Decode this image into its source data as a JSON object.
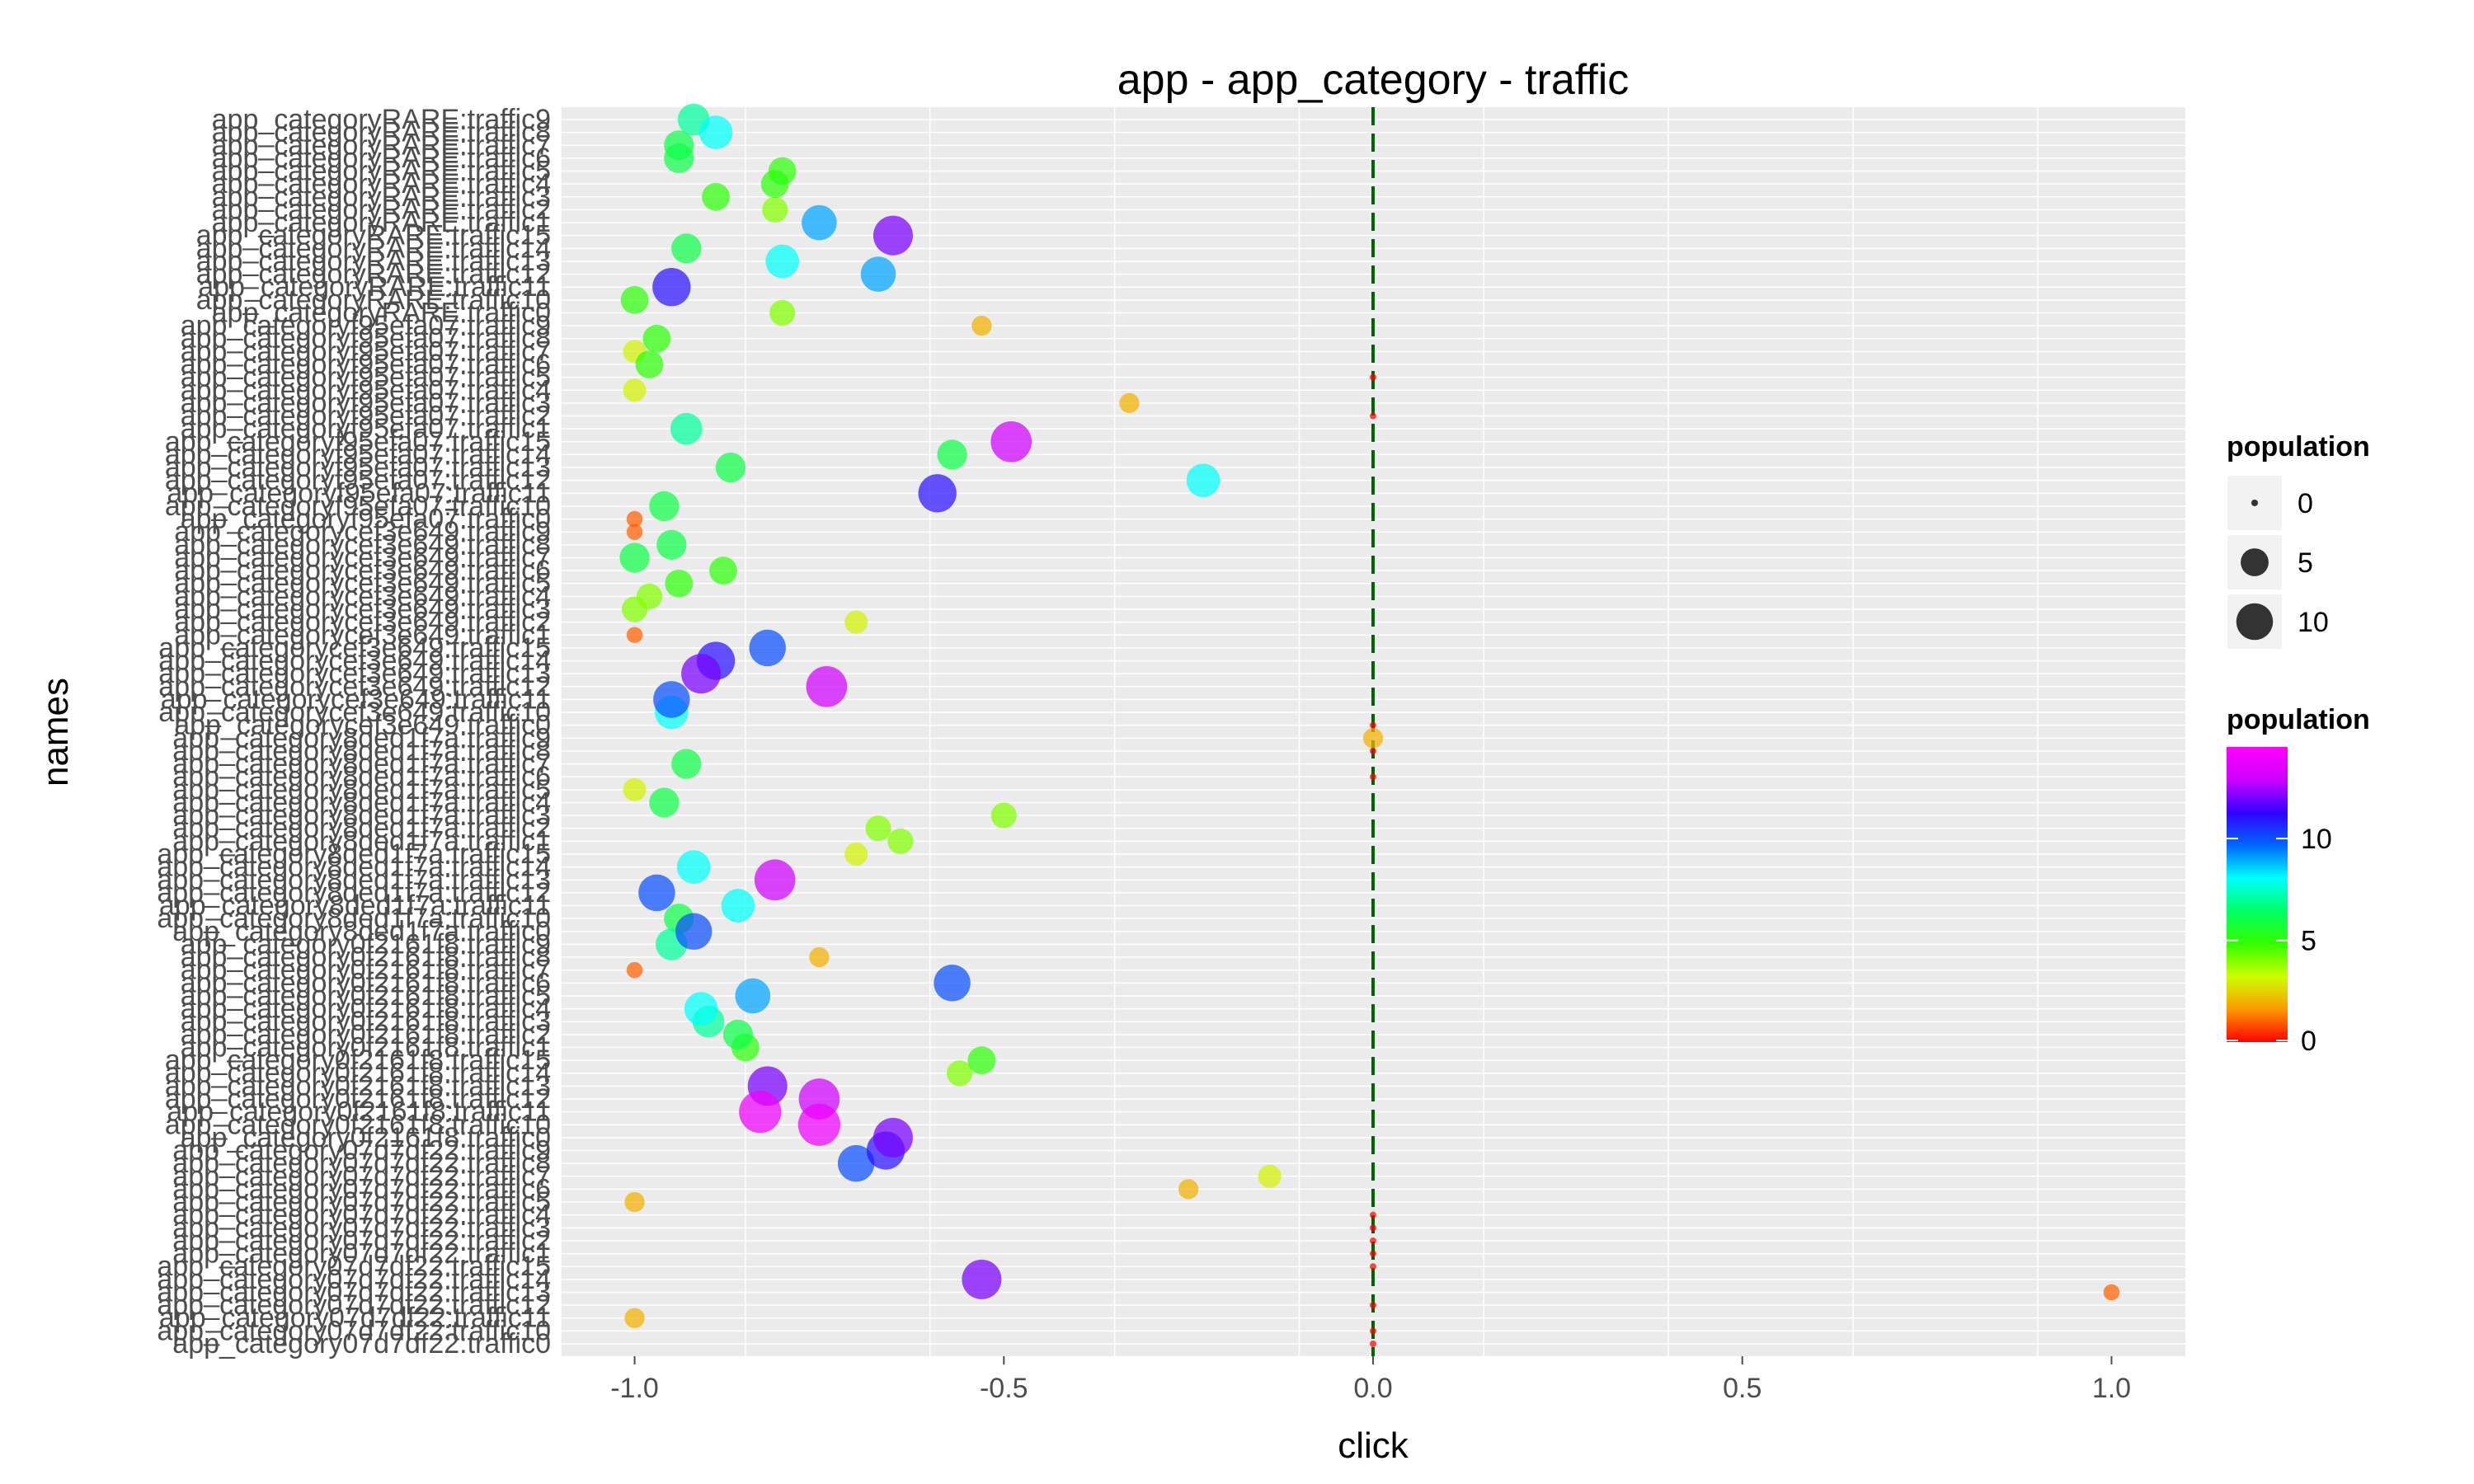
{
  "chart_data": {
    "type": "scatter",
    "title": "app - app_category - traffic",
    "xlabel": "click",
    "ylabel": "names",
    "xlim": [
      -1.1,
      1.1
    ],
    "x_ticks": [
      -1.0,
      -0.5,
      0.0,
      0.5,
      1.0
    ],
    "x_tick_labels": [
      "-1.0",
      "-0.5",
      "0.0",
      "0.5",
      "1.0"
    ],
    "grid": true,
    "legend_placement": "right",
    "reference_line": {
      "x": 0.0,
      "style": "dashed",
      "color": "#006400"
    },
    "legend_size": {
      "title": "population",
      "values": [
        0,
        5,
        10
      ],
      "labels": [
        "0",
        "5",
        "10"
      ]
    },
    "legend_color": {
      "title": "population",
      "range": [
        0,
        14.5
      ],
      "ticks": [
        0,
        5,
        10
      ],
      "tick_labels": [
        "0",
        "5",
        "10"
      ],
      "colors": [
        "#ff0000",
        "#ff9900",
        "#ccff00",
        "#33ff00",
        "#00ff66",
        "#00ffff",
        "#0066ff",
        "#3300ff",
        "#cc00ff",
        "#ff00ff"
      ]
    },
    "categories": [
      "app_categoryRARE:traffic9",
      "app_categoryRARE:traffic8",
      "app_categoryRARE:traffic7",
      "app_categoryRARE:traffic6",
      "app_categoryRARE:traffic5",
      "app_categoryRARE:traffic4",
      "app_categoryRARE:traffic3",
      "app_categoryRARE:traffic2",
      "app_categoryRARE:traffic1",
      "app_categoryRARE:traffic15",
      "app_categoryRARE:traffic14",
      "app_categoryRARE:traffic13",
      "app_categoryRARE:traffic12",
      "app_categoryRARE:traffic11",
      "app_categoryRARE:traffic10",
      "app_categoryRARE:traffic0",
      "app_categoryf95efa07:traffic9",
      "app_categoryf95efa07:traffic8",
      "app_categoryf95efa07:traffic7",
      "app_categoryf95efa07:traffic6",
      "app_categoryf95efa07:traffic5",
      "app_categoryf95efa07:traffic4",
      "app_categoryf95efa07:traffic3",
      "app_categoryf95efa07:traffic2",
      "app_categoryf95efa07:traffic1",
      "app_categoryf95efa07:traffic15",
      "app_categoryf95efa07:traffic14",
      "app_categoryf95efa07:traffic13",
      "app_categoryf95efa07:traffic12",
      "app_categoryf95efa07:traffic11",
      "app_categoryf95efa07:traffic10",
      "app_categoryf95efa07:traffic0",
      "app_categorycef3e649:traffic9",
      "app_categorycef3e649:traffic8",
      "app_categorycef3e649:traffic7",
      "app_categorycef3e649:traffic6",
      "app_categorycef3e649:traffic5",
      "app_categorycef3e649:traffic4",
      "app_categorycef3e649:traffic3",
      "app_categorycef3e649:traffic2",
      "app_categorycef3e649:traffic1",
      "app_categorycef3e649:traffic15",
      "app_categorycef3e649:traffic14",
      "app_categorycef3e649:traffic13",
      "app_categorycef3e649:traffic12",
      "app_categorycef3e649:traffic11",
      "app_categorycef3e649:traffic10",
      "app_categorycef3e649:traffic0",
      "app_category8ded1f7a:traffic9",
      "app_category8ded1f7a:traffic8",
      "app_category8ded1f7a:traffic7",
      "app_category8ded1f7a:traffic6",
      "app_category8ded1f7a:traffic5",
      "app_category8ded1f7a:traffic4",
      "app_category8ded1f7a:traffic3",
      "app_category8ded1f7a:traffic2",
      "app_category8ded1f7a:traffic1",
      "app_category8ded1f7a:traffic15",
      "app_category8ded1f7a:traffic14",
      "app_category8ded1f7a:traffic13",
      "app_category8ded1f7a:traffic12",
      "app_category8ded1f7a:traffic11",
      "app_category8ded1f7a:traffic10",
      "app_category8ded1f7a:traffic0",
      "app_category0f2161f8:traffic9",
      "app_category0f2161f8:traffic8",
      "app_category0f2161f8:traffic7",
      "app_category0f2161f8:traffic6",
      "app_category0f2161f8:traffic5",
      "app_category0f2161f8:traffic4",
      "app_category0f2161f8:traffic3",
      "app_category0f2161f8:traffic2",
      "app_category0f2161f8:traffic1",
      "app_category0f2161f8:traffic15",
      "app_category0f2161f8:traffic14",
      "app_category0f2161f8:traffic13",
      "app_category0f2161f8:traffic12",
      "app_category0f2161f8:traffic11",
      "app_category0f2161f8:traffic10",
      "app_category0f2161f8:traffic0",
      "app_category07d7df22:traffic9",
      "app_category07d7df22:traffic8",
      "app_category07d7df22:traffic7",
      "app_category07d7df22:traffic6",
      "app_category07d7df22:traffic5",
      "app_category07d7df22:traffic4",
      "app_category07d7df22:traffic3",
      "app_category07d7df22:traffic2",
      "app_category07d7df22:traffic1",
      "app_category07d7df22:traffic15",
      "app_category07d7df22:traffic14",
      "app_category07d7df22:traffic13",
      "app_category07d7df22:traffic12",
      "app_category07d7df22:traffic11",
      "app_category07d7df22:traffic10",
      "app_category07d7df22:traffic0"
    ],
    "points": [
      {
        "name": "app_categoryRARE:traffic9",
        "x": -0.92,
        "population": 7
      },
      {
        "name": "app_categoryRARE:traffic8",
        "x": -0.89,
        "population": 8
      },
      {
        "name": "app_categoryRARE:traffic7",
        "x": -0.94,
        "population": 6
      },
      {
        "name": "app_categoryRARE:traffic6",
        "x": -0.94,
        "population": 6
      },
      {
        "name": "app_categoryRARE:traffic5",
        "x": -0.8,
        "population": 5
      },
      {
        "name": "app_categoryRARE:traffic4",
        "x": -0.81,
        "population": 5
      },
      {
        "name": "app_categoryRARE:traffic3",
        "x": -0.89,
        "population": 5
      },
      {
        "name": "app_categoryRARE:traffic2",
        "x": -0.81,
        "population": 4
      },
      {
        "name": "app_categoryRARE:traffic1",
        "x": -0.75,
        "population": 9
      },
      {
        "name": "app_categoryRARE:traffic15",
        "x": -0.65,
        "population": 12
      },
      {
        "name": "app_categoryRARE:traffic14",
        "x": -0.93,
        "population": 6
      },
      {
        "name": "app_categoryRARE:traffic13",
        "x": -0.8,
        "population": 8
      },
      {
        "name": "app_categoryRARE:traffic12",
        "x": -0.67,
        "population": 9
      },
      {
        "name": "app_categoryRARE:traffic11",
        "x": -0.95,
        "population": 11
      },
      {
        "name": "app_categoryRARE:traffic10",
        "x": -1.0,
        "population": 5
      },
      {
        "name": "app_categoryRARE:traffic0",
        "x": -0.8,
        "population": 4
      },
      {
        "name": "app_categoryf95efa07:traffic9",
        "x": -0.53,
        "population": 2
      },
      {
        "name": "app_categoryf95efa07:traffic8",
        "x": -0.97,
        "population": 5
      },
      {
        "name": "app_categoryf95efa07:traffic7",
        "x": -1.0,
        "population": 3
      },
      {
        "name": "app_categoryf95efa07:traffic6",
        "x": -0.98,
        "population": 5
      },
      {
        "name": "app_categoryf95efa07:traffic5",
        "x": 0.0,
        "population": 0
      },
      {
        "name": "app_categoryf95efa07:traffic4",
        "x": -1.0,
        "population": 3
      },
      {
        "name": "app_categoryf95efa07:traffic3",
        "x": -0.33,
        "population": 2
      },
      {
        "name": "app_categoryf95efa07:traffic2",
        "x": 0.0,
        "population": 0
      },
      {
        "name": "app_categoryf95efa07:traffic1",
        "x": -0.93,
        "population": 7
      },
      {
        "name": "app_categoryf95efa07:traffic15",
        "x": -0.49,
        "population": 13
      },
      {
        "name": "app_categoryf95efa07:traffic14",
        "x": -0.57,
        "population": 6
      },
      {
        "name": "app_categoryf95efa07:traffic13",
        "x": -0.87,
        "population": 6
      },
      {
        "name": "app_categoryf95efa07:traffic12",
        "x": -0.23,
        "population": 8
      },
      {
        "name": "app_categoryf95efa07:traffic11",
        "x": -0.59,
        "population": 11
      },
      {
        "name": "app_categoryf95efa07:traffic10",
        "x": -0.96,
        "population": 6
      },
      {
        "name": "app_categoryf95efa07:traffic0",
        "x": -1.0,
        "population": 1
      },
      {
        "name": "app_categorycef3e649:traffic9",
        "x": -1.0,
        "population": 1
      },
      {
        "name": "app_categorycef3e649:traffic8",
        "x": -0.95,
        "population": 6
      },
      {
        "name": "app_categorycef3e649:traffic7",
        "x": -1.0,
        "population": 6
      },
      {
        "name": "app_categorycef3e649:traffic6",
        "x": -0.88,
        "population": 5
      },
      {
        "name": "app_categorycef3e649:traffic5",
        "x": -0.94,
        "population": 5
      },
      {
        "name": "app_categorycef3e649:traffic4",
        "x": -0.98,
        "population": 4
      },
      {
        "name": "app_categorycef3e649:traffic3",
        "x": -1.0,
        "population": 4
      },
      {
        "name": "app_categorycef3e649:traffic2",
        "x": -0.7,
        "population": 3
      },
      {
        "name": "app_categorycef3e649:traffic1",
        "x": -1.0,
        "population": 1
      },
      {
        "name": "app_categorycef3e649:traffic15",
        "x": -0.82,
        "population": 10
      },
      {
        "name": "app_categorycef3e649:traffic14",
        "x": -0.89,
        "population": 11
      },
      {
        "name": "app_categorycef3e649:traffic13",
        "x": -0.91,
        "population": 12
      },
      {
        "name": "app_categorycef3e649:traffic12",
        "x": -0.74,
        "population": 13
      },
      {
        "name": "app_categorycef3e649:traffic11",
        "x": -0.95,
        "population": 10
      },
      {
        "name": "app_categorycef3e649:traffic10",
        "x": -0.95,
        "population": 8
      },
      {
        "name": "app_categorycef3e649:traffic0",
        "x": 0.0,
        "population": 0
      },
      {
        "name": "app_category8ded1f7a:traffic9",
        "x": 0.0,
        "population": 2
      },
      {
        "name": "app_category8ded1f7a:traffic8",
        "x": 0.0,
        "population": 0
      },
      {
        "name": "app_category8ded1f7a:traffic7",
        "x": -0.93,
        "population": 6
      },
      {
        "name": "app_category8ded1f7a:traffic6",
        "x": 0.0,
        "population": 0
      },
      {
        "name": "app_category8ded1f7a:traffic5",
        "x": -1.0,
        "population": 3
      },
      {
        "name": "app_category8ded1f7a:traffic4",
        "x": -0.96,
        "population": 6
      },
      {
        "name": "app_category8ded1f7a:traffic3",
        "x": -0.5,
        "population": 4
      },
      {
        "name": "app_category8ded1f7a:traffic2",
        "x": -0.67,
        "population": 4
      },
      {
        "name": "app_category8ded1f7a:traffic1",
        "x": -0.64,
        "population": 4
      },
      {
        "name": "app_category8ded1f7a:traffic15",
        "x": -0.7,
        "population": 3
      },
      {
        "name": "app_category8ded1f7a:traffic14",
        "x": -0.92,
        "population": 8
      },
      {
        "name": "app_category8ded1f7a:traffic13",
        "x": -0.81,
        "population": 13
      },
      {
        "name": "app_category8ded1f7a:traffic12",
        "x": -0.97,
        "population": 10
      },
      {
        "name": "app_category8ded1f7a:traffic11",
        "x": -0.86,
        "population": 8
      },
      {
        "name": "app_category8ded1f7a:traffic10",
        "x": -0.94,
        "population": 6
      },
      {
        "name": "app_category8ded1f7a:traffic0",
        "x": -0.92,
        "population": 10
      },
      {
        "name": "app_category0f2161f8:traffic9",
        "x": -0.95,
        "population": 7
      },
      {
        "name": "app_category0f2161f8:traffic8",
        "x": -0.75,
        "population": 2
      },
      {
        "name": "app_category0f2161f8:traffic7",
        "x": -1.0,
        "population": 1
      },
      {
        "name": "app_category0f2161f8:traffic6",
        "x": -0.57,
        "population": 10
      },
      {
        "name": "app_category0f2161f8:traffic5",
        "x": -0.84,
        "population": 9
      },
      {
        "name": "app_category0f2161f8:traffic4",
        "x": -0.91,
        "population": 8
      },
      {
        "name": "app_category0f2161f8:traffic3",
        "x": -0.9,
        "population": 7
      },
      {
        "name": "app_category0f2161f8:traffic2",
        "x": -0.86,
        "population": 6
      },
      {
        "name": "app_category0f2161f8:traffic1",
        "x": -0.85,
        "population": 5
      },
      {
        "name": "app_category0f2161f8:traffic15",
        "x": -0.53,
        "population": 5
      },
      {
        "name": "app_category0f2161f8:traffic14",
        "x": -0.56,
        "population": 4
      },
      {
        "name": "app_category0f2161f8:traffic13",
        "x": -0.82,
        "population": 12
      },
      {
        "name": "app_category0f2161f8:traffic12",
        "x": -0.75,
        "population": 13
      },
      {
        "name": "app_category0f2161f8:traffic11",
        "x": -0.83,
        "population": 14
      },
      {
        "name": "app_category0f2161f8:traffic10",
        "x": -0.75,
        "population": 14
      },
      {
        "name": "app_category0f2161f8:traffic0",
        "x": -0.65,
        "population": 12
      },
      {
        "name": "app_category07d7df22:traffic9",
        "x": -0.66,
        "population": 11
      },
      {
        "name": "app_category07d7df22:traffic8",
        "x": -0.7,
        "population": 10
      },
      {
        "name": "app_category07d7df22:traffic7",
        "x": -0.14,
        "population": 3
      },
      {
        "name": "app_category07d7df22:traffic6",
        "x": -0.25,
        "population": 2
      },
      {
        "name": "app_category07d7df22:traffic5",
        "x": -1.0,
        "population": 2
      },
      {
        "name": "app_category07d7df22:traffic4",
        "x": 0.0,
        "population": 0
      },
      {
        "name": "app_category07d7df22:traffic3",
        "x": 0.0,
        "population": 0
      },
      {
        "name": "app_category07d7df22:traffic2",
        "x": 0.0,
        "population": 0
      },
      {
        "name": "app_category07d7df22:traffic1",
        "x": 0.0,
        "population": 0
      },
      {
        "name": "app_category07d7df22:traffic15",
        "x": 0.0,
        "population": 0
      },
      {
        "name": "app_category07d7df22:traffic14",
        "x": -0.53,
        "population": 12
      },
      {
        "name": "app_category07d7df22:traffic13",
        "x": 1.0,
        "population": 1
      },
      {
        "name": "app_category07d7df22:traffic12",
        "x": 0.0,
        "population": 0
      },
      {
        "name": "app_category07d7df22:traffic11",
        "x": -1.0,
        "population": 2
      },
      {
        "name": "app_category07d7df22:traffic10",
        "x": 0.0,
        "population": 0
      },
      {
        "name": "app_category07d7df22:traffic0",
        "x": 0.0,
        "population": 0
      }
    ]
  }
}
